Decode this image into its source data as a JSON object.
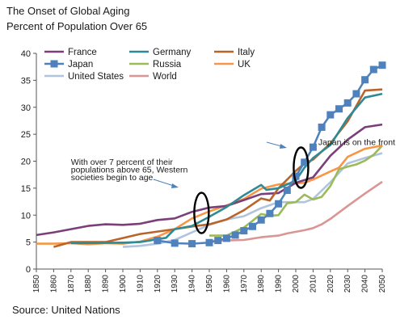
{
  "chart_data": {
    "type": "line",
    "title": "The Onset of Global Aging",
    "subtitle": "Percent of Population Over 65",
    "source": "Source: United Nations",
    "ylim": [
      0,
      40
    ],
    "yticks": [
      0,
      5,
      10,
      15,
      20,
      25,
      30,
      35,
      40
    ],
    "xlim": [
      1850,
      2050
    ],
    "xticks": [
      1850,
      1860,
      1870,
      1880,
      1890,
      1900,
      1910,
      1920,
      1930,
      1940,
      1950,
      1960,
      1970,
      1980,
      1990,
      2000,
      2010,
      2020,
      2030,
      2040,
      2050
    ],
    "grid": false,
    "legend_placement": "top-left",
    "series": [
      {
        "name": "France",
        "color": "#7a3f79",
        "marker": "none",
        "points": [
          [
            1850,
            6.3
          ],
          [
            1860,
            6.8
          ],
          [
            1870,
            7.4
          ],
          [
            1880,
            8.0
          ],
          [
            1890,
            8.3
          ],
          [
            1900,
            8.2
          ],
          [
            1910,
            8.4
          ],
          [
            1920,
            9.1
          ],
          [
            1930,
            9.4
          ],
          [
            1940,
            10.6
          ],
          [
            1950,
            11.4
          ],
          [
            1960,
            11.7
          ],
          [
            1970,
            12.8
          ],
          [
            1980,
            13.9
          ],
          [
            1990,
            14.1
          ],
          [
            2000,
            16.0
          ],
          [
            2005,
            16.5
          ],
          [
            2010,
            17.0
          ],
          [
            2020,
            21.0
          ],
          [
            2030,
            24.0
          ],
          [
            2040,
            26.3
          ],
          [
            2050,
            26.8
          ]
        ]
      },
      {
        "name": "Germany",
        "color": "#2e8b96",
        "marker": "none",
        "points": [
          [
            1870,
            4.8
          ],
          [
            1900,
            4.9
          ],
          [
            1910,
            5.0
          ],
          [
            1925,
            5.8
          ],
          [
            1930,
            7.4
          ],
          [
            1940,
            8.0
          ],
          [
            1950,
            9.7
          ],
          [
            1960,
            11.5
          ],
          [
            1970,
            13.7
          ],
          [
            1980,
            15.6
          ],
          [
            1983,
            14.7
          ],
          [
            1990,
            15.0
          ],
          [
            2000,
            16.4
          ],
          [
            2005,
            18.8
          ],
          [
            2010,
            20.6
          ],
          [
            2020,
            23.0
          ],
          [
            2030,
            28.0
          ],
          [
            2040,
            31.8
          ],
          [
            2050,
            32.5
          ]
        ]
      },
      {
        "name": "Italy",
        "color": "#b8642a",
        "marker": "none",
        "points": [
          [
            1860,
            4.1
          ],
          [
            1870,
            5.0
          ],
          [
            1890,
            5.0
          ],
          [
            1910,
            6.5
          ],
          [
            1930,
            7.4
          ],
          [
            1940,
            7.9
          ],
          [
            1950,
            8.3
          ],
          [
            1960,
            9.2
          ],
          [
            1970,
            10.9
          ],
          [
            1980,
            13.1
          ],
          [
            1985,
            12.7
          ],
          [
            1990,
            15.0
          ],
          [
            2000,
            18.2
          ],
          [
            2005,
            19.6
          ],
          [
            2010,
            20.3
          ],
          [
            2020,
            23.3
          ],
          [
            2030,
            27.4
          ],
          [
            2040,
            33.1
          ],
          [
            2050,
            33.3
          ]
        ]
      },
      {
        "name": "Japan",
        "color": "#4f81bd",
        "marker": "square",
        "points": [
          [
            1920,
            5.3
          ],
          [
            1930,
            4.8
          ],
          [
            1940,
            4.7
          ],
          [
            1950,
            4.9
          ],
          [
            1955,
            5.3
          ],
          [
            1960,
            5.7
          ],
          [
            1965,
            6.3
          ],
          [
            1970,
            7.1
          ],
          [
            1975,
            7.9
          ],
          [
            1980,
            9.1
          ],
          [
            1985,
            10.3
          ],
          [
            1990,
            12.1
          ],
          [
            1995,
            14.6
          ],
          [
            2000,
            17.2
          ],
          [
            2005,
            19.8
          ],
          [
            2010,
            22.6
          ],
          [
            2015,
            26.3
          ],
          [
            2020,
            28.6
          ],
          [
            2025,
            29.7
          ],
          [
            2030,
            30.8
          ],
          [
            2035,
            32.5
          ],
          [
            2040,
            35.1
          ],
          [
            2045,
            37.0
          ],
          [
            2050,
            37.8
          ]
        ]
      },
      {
        "name": "Russia",
        "color": "#9bbb59",
        "marker": "none",
        "points": [
          [
            1950,
            6.2
          ],
          [
            1960,
            6.2
          ],
          [
            1970,
            7.7
          ],
          [
            1980,
            10.2
          ],
          [
            1985,
            9.9
          ],
          [
            1990,
            10.0
          ],
          [
            1995,
            12.2
          ],
          [
            2000,
            12.4
          ],
          [
            2005,
            13.8
          ],
          [
            2010,
            12.9
          ],
          [
            2015,
            13.4
          ],
          [
            2020,
            15.4
          ],
          [
            2025,
            18.5
          ],
          [
            2030,
            19.0
          ],
          [
            2035,
            19.4
          ],
          [
            2040,
            20.1
          ],
          [
            2045,
            21.2
          ],
          [
            2050,
            22.9
          ]
        ]
      },
      {
        "name": "UK",
        "color": "#f79646",
        "marker": "none",
        "points": [
          [
            1850,
            4.7
          ],
          [
            1860,
            4.7
          ],
          [
            1870,
            4.8
          ],
          [
            1880,
            4.6
          ],
          [
            1890,
            4.8
          ],
          [
            1900,
            4.7
          ],
          [
            1910,
            5.1
          ],
          [
            1920,
            6.0
          ],
          [
            1930,
            7.4
          ],
          [
            1940,
            9.4
          ],
          [
            1950,
            10.7
          ],
          [
            1960,
            11.8
          ],
          [
            1970,
            13.0
          ],
          [
            1980,
            14.9
          ],
          [
            1990,
            15.7
          ],
          [
            2000,
            15.9
          ],
          [
            2005,
            16.0
          ],
          [
            2010,
            16.6
          ],
          [
            2020,
            18.1
          ],
          [
            2025,
            18.8
          ],
          [
            2030,
            20.8
          ],
          [
            2040,
            22.3
          ],
          [
            2050,
            22.9
          ]
        ]
      },
      {
        "name": "United States",
        "color": "#b0c4de",
        "marker": "none",
        "points": [
          [
            1900,
            4.1
          ],
          [
            1910,
            4.3
          ],
          [
            1920,
            4.7
          ],
          [
            1930,
            5.4
          ],
          [
            1940,
            6.8
          ],
          [
            1950,
            8.2
          ],
          [
            1960,
            9.2
          ],
          [
            1970,
            9.8
          ],
          [
            1980,
            11.3
          ],
          [
            1990,
            12.4
          ],
          [
            2000,
            12.4
          ],
          [
            2005,
            12.4
          ],
          [
            2010,
            13.0
          ],
          [
            2020,
            16.1
          ],
          [
            2030,
            19.6
          ],
          [
            2040,
            20.6
          ],
          [
            2050,
            21.5
          ]
        ]
      },
      {
        "name": "World",
        "color": "#d99694",
        "marker": "none",
        "points": [
          [
            1950,
            5.2
          ],
          [
            1960,
            5.3
          ],
          [
            1970,
            5.4
          ],
          [
            1980,
            5.9
          ],
          [
            1990,
            6.2
          ],
          [
            1995,
            6.6
          ],
          [
            2000,
            6.9
          ],
          [
            2005,
            7.2
          ],
          [
            2010,
            7.6
          ],
          [
            2015,
            8.3
          ],
          [
            2020,
            9.3
          ],
          [
            2030,
            11.7
          ],
          [
            2040,
            14.0
          ],
          [
            2050,
            16.2
          ]
        ]
      }
    ],
    "annotations": [
      {
        "text": "Japan is on the front line of aging.",
        "x": 2013,
        "y": 23
      },
      {
        "text": "With over 7 percent of their",
        "x": 1870,
        "y": 19.3
      },
      {
        "text": "populations above 65, Western",
        "x": 1870,
        "y": 17.9
      },
      {
        "text": "societies begin to age.",
        "x": 1870,
        "y": 16.5
      }
    ],
    "highlight_ellipses": [
      {
        "x": 1945.5,
        "y": 10.4
      },
      {
        "x": 2003,
        "y": 18.8
      }
    ]
  }
}
